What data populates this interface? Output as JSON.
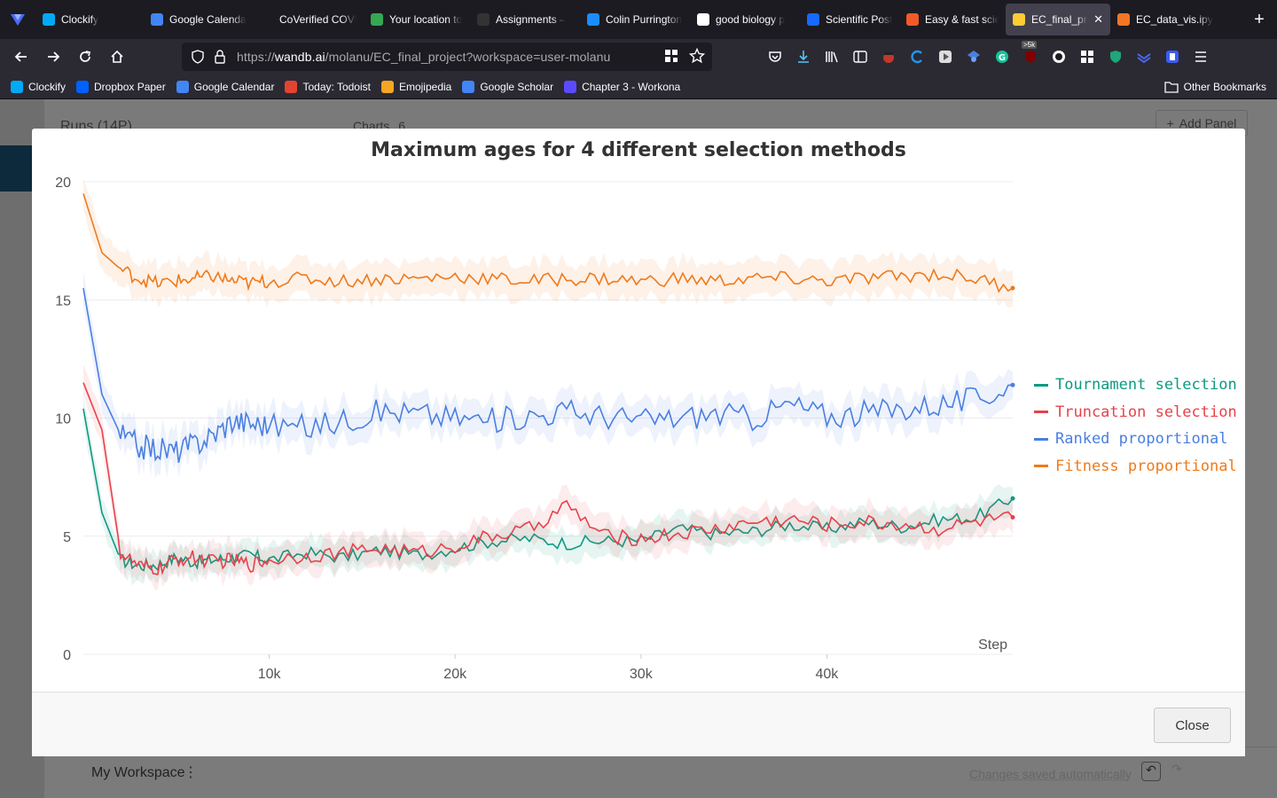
{
  "browser": {
    "tabs": [
      {
        "label": "Clockify",
        "color": "#03a9f4"
      },
      {
        "label": "Google Calendar",
        "color": "#4285f4"
      },
      {
        "label": "CoVerified COVID",
        "color": "#1c1b22"
      },
      {
        "label": "Your location to",
        "color": "#34a853"
      },
      {
        "label": "Assignments –",
        "color": "#333333"
      },
      {
        "label": "Colin Purrington",
        "color": "#1a8cff"
      },
      {
        "label": "good biology p",
        "color": "#ffffff"
      },
      {
        "label": "Scientific Poster",
        "color": "#1769ff"
      },
      {
        "label": "Easy & fast scie",
        "color": "#f05a28"
      },
      {
        "label": "EC_final_proj",
        "color": "#ffcc33",
        "active": true
      },
      {
        "label": "EC_data_vis.ipy",
        "color": "#f37626"
      }
    ],
    "url_prefix": "https://",
    "url_host": "wandb.ai",
    "url_path": "/molanu/EC_final_project?workspace=user-molanu",
    "bookmarks": [
      {
        "label": "Clockify",
        "color": "#03a9f4"
      },
      {
        "label": "Dropbox Paper",
        "color": "#0061fe"
      },
      {
        "label": "Google Calendar",
        "color": "#4285f4"
      },
      {
        "label": "Today: Todoist",
        "color": "#e44332"
      },
      {
        "label": "Emojipedia",
        "color": "#f5a623"
      },
      {
        "label": "Google Scholar",
        "color": "#4285f4"
      },
      {
        "label": "Chapter 3 - Workona",
        "color": "#5b4bff"
      }
    ],
    "other_bookmarks": "Other Bookmarks",
    "badge": ">5k"
  },
  "app": {
    "runs_label": "Runs (14P)",
    "charts_label": "Charts",
    "charts_count": "6",
    "add_panel": "Add Panel",
    "workspace": "My Workspace",
    "saved_status": "Changes saved automatically"
  },
  "modal": {
    "close_label": "Close"
  },
  "chart_data": {
    "type": "line",
    "title": "Maximum ages for 4 different selection methods",
    "xlabel": "Step",
    "ylabel": "",
    "xlim": [
      0,
      50000
    ],
    "ylim": [
      0,
      20
    ],
    "xticks": [
      "10k",
      "20k",
      "30k",
      "40k"
    ],
    "xtick_values": [
      10000,
      20000,
      30000,
      40000
    ],
    "yticks": [
      0,
      5,
      10,
      15,
      20
    ],
    "legend_position": "right",
    "grid": true,
    "series": [
      {
        "name": "Tournament selection",
        "color": "#0b9a82",
        "x": [
          0,
          1000,
          2000,
          3000,
          4000,
          5000,
          6000,
          7000,
          8000,
          9000,
          10000,
          12000,
          14000,
          16000,
          18000,
          20000,
          22000,
          24000,
          26000,
          28000,
          30000,
          32000,
          34000,
          36000,
          38000,
          40000,
          42000,
          44000,
          46000,
          48000,
          50000
        ],
        "values": [
          10.4,
          6.0,
          4.0,
          3.75,
          3.8,
          4.1,
          3.9,
          4.0,
          4.1,
          4.2,
          4.0,
          4.3,
          4.1,
          4.4,
          4.2,
          4.5,
          4.8,
          4.9,
          4.7,
          4.8,
          4.8,
          5.3,
          5.1,
          5.2,
          5.5,
          5.3,
          5.6,
          5.4,
          5.7,
          5.8,
          6.6
        ]
      },
      {
        "name": "Truncation selection",
        "color": "#e8414a",
        "x": [
          0,
          1000,
          2000,
          3000,
          4000,
          5000,
          6000,
          7000,
          8000,
          9000,
          10000,
          12000,
          14000,
          16000,
          18000,
          20000,
          22000,
          24000,
          26000,
          28000,
          30000,
          32000,
          34000,
          36000,
          38000,
          40000,
          42000,
          44000,
          46000,
          48000,
          50000
        ],
        "values": [
          11.5,
          9.5,
          4.3,
          3.7,
          3.6,
          4.0,
          4.1,
          3.9,
          4.0,
          3.8,
          4.0,
          4.2,
          4.3,
          4.5,
          4.3,
          4.6,
          5.0,
          5.3,
          6.3,
          5.0,
          4.9,
          5.1,
          5.3,
          5.6,
          5.7,
          5.5,
          5.6,
          5.5,
          5.3,
          5.6,
          5.8
        ]
      },
      {
        "name": "Ranked proportional",
        "color": "#4a7fe0",
        "x": [
          0,
          1000,
          2000,
          3000,
          4000,
          5000,
          6000,
          7000,
          8000,
          9000,
          10000,
          12000,
          14000,
          16000,
          18000,
          20000,
          22000,
          24000,
          26000,
          28000,
          30000,
          32000,
          34000,
          36000,
          38000,
          40000,
          42000,
          44000,
          46000,
          48000,
          50000
        ],
        "values": [
          15.5,
          11.0,
          9.3,
          8.8,
          8.7,
          8.6,
          8.9,
          9.3,
          9.9,
          9.8,
          9.7,
          9.6,
          9.9,
          10.3,
          10.2,
          10.0,
          9.9,
          10.1,
          10.3,
          10.1,
          9.9,
          10.0,
          10.2,
          10.0,
          10.6,
          10.1,
          10.2,
          10.4,
          10.6,
          10.8,
          11.4
        ]
      },
      {
        "name": "Fitness proportional",
        "color": "#ef7a1a",
        "x": [
          0,
          1000,
          2000,
          3000,
          4000,
          5000,
          6000,
          7000,
          8000,
          9000,
          10000,
          12000,
          14000,
          16000,
          18000,
          20000,
          22000,
          24000,
          26000,
          28000,
          30000,
          32000,
          34000,
          36000,
          38000,
          40000,
          42000,
          44000,
          46000,
          48000,
          50000
        ],
        "values": [
          19.5,
          17.0,
          16.3,
          15.9,
          15.7,
          15.8,
          15.9,
          16.0,
          15.8,
          15.7,
          15.8,
          15.9,
          15.8,
          15.9,
          15.9,
          16.0,
          15.9,
          15.8,
          15.9,
          15.9,
          15.8,
          15.9,
          15.8,
          15.9,
          15.9,
          15.8,
          15.9,
          16.0,
          16.1,
          15.9,
          15.5
        ]
      }
    ]
  }
}
